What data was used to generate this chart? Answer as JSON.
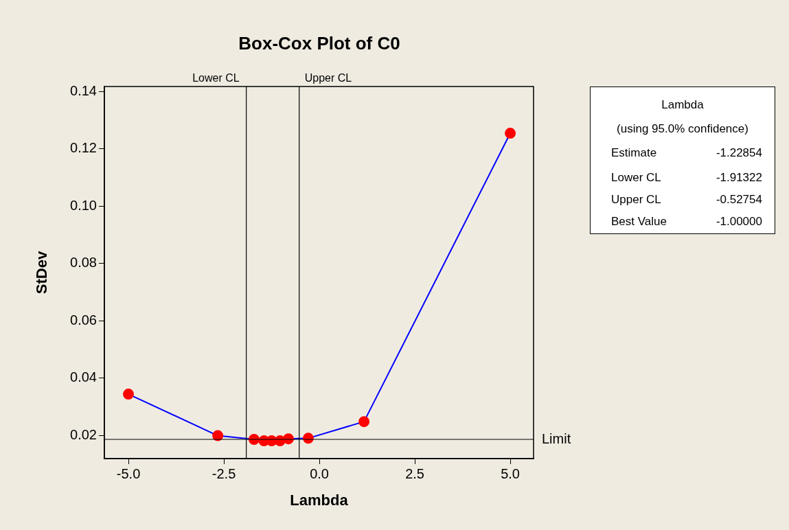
{
  "chart_data": {
    "type": "line",
    "title": "Box-Cox Plot of C0",
    "xlabel": "Lambda",
    "ylabel": "StDev",
    "xlim": [
      -5.63,
      5.61
    ],
    "ylim": [
      0.0119,
      0.1417
    ],
    "xticks": [
      {
        "value": -5,
        "label": "-5.0"
      },
      {
        "value": -2.5,
        "label": "-2.5"
      },
      {
        "value": 0,
        "label": "0.0"
      },
      {
        "value": 2.5,
        "label": "2.5"
      },
      {
        "value": 5,
        "label": "5.0"
      }
    ],
    "yticks": [
      {
        "value": 0.02,
        "label": "0.02"
      },
      {
        "value": 0.04,
        "label": "0.04"
      },
      {
        "value": 0.06,
        "label": "0.06"
      },
      {
        "value": 0.08,
        "label": "0.08"
      },
      {
        "value": 0.1,
        "label": "0.10"
      },
      {
        "value": 0.12,
        "label": "0.12"
      },
      {
        "value": 0.14,
        "label": "0.14"
      }
    ],
    "series": [
      {
        "color": "#0000ff",
        "colors": [
          "#ff0000",
          "#ff0000",
          "#ff0000",
          "#ff0000",
          "#ff0000",
          "#ff0000",
          "#ff0000",
          "#ff0000",
          "#ff0000",
          "#ff0000"
        ],
        "x": [
          -5,
          -2.66,
          -1.71,
          -1.45,
          -1.25,
          -1.03,
          -0.81,
          -0.29,
          1.17,
          5
        ],
        "values": [
          0.0344,
          0.0199,
          0.0186,
          0.0181,
          0.0181,
          0.0181,
          0.0188,
          0.019,
          0.0248,
          0.1254
        ]
      }
    ],
    "ref_lines": [
      {
        "axis": "x",
        "value": -1.91322,
        "label": "Lower CL",
        "color": "#000000"
      },
      {
        "axis": "x",
        "value": -0.52754,
        "label": "Upper CL",
        "color": "#000000"
      },
      {
        "axis": "y",
        "value": 0.0186,
        "label": "Limit",
        "color": "#000000"
      }
    ],
    "annotations": [
      "Lambda",
      "(using 95.0% confidence)",
      "Estimate",
      "-1.22854",
      "Lower CL",
      "-1.91322",
      "Upper CL",
      "-0.52754",
      "Best Value",
      "-1.00000"
    ],
    "grid": false,
    "legend": false,
    "marker": "circle",
    "line_style": "solid"
  }
}
